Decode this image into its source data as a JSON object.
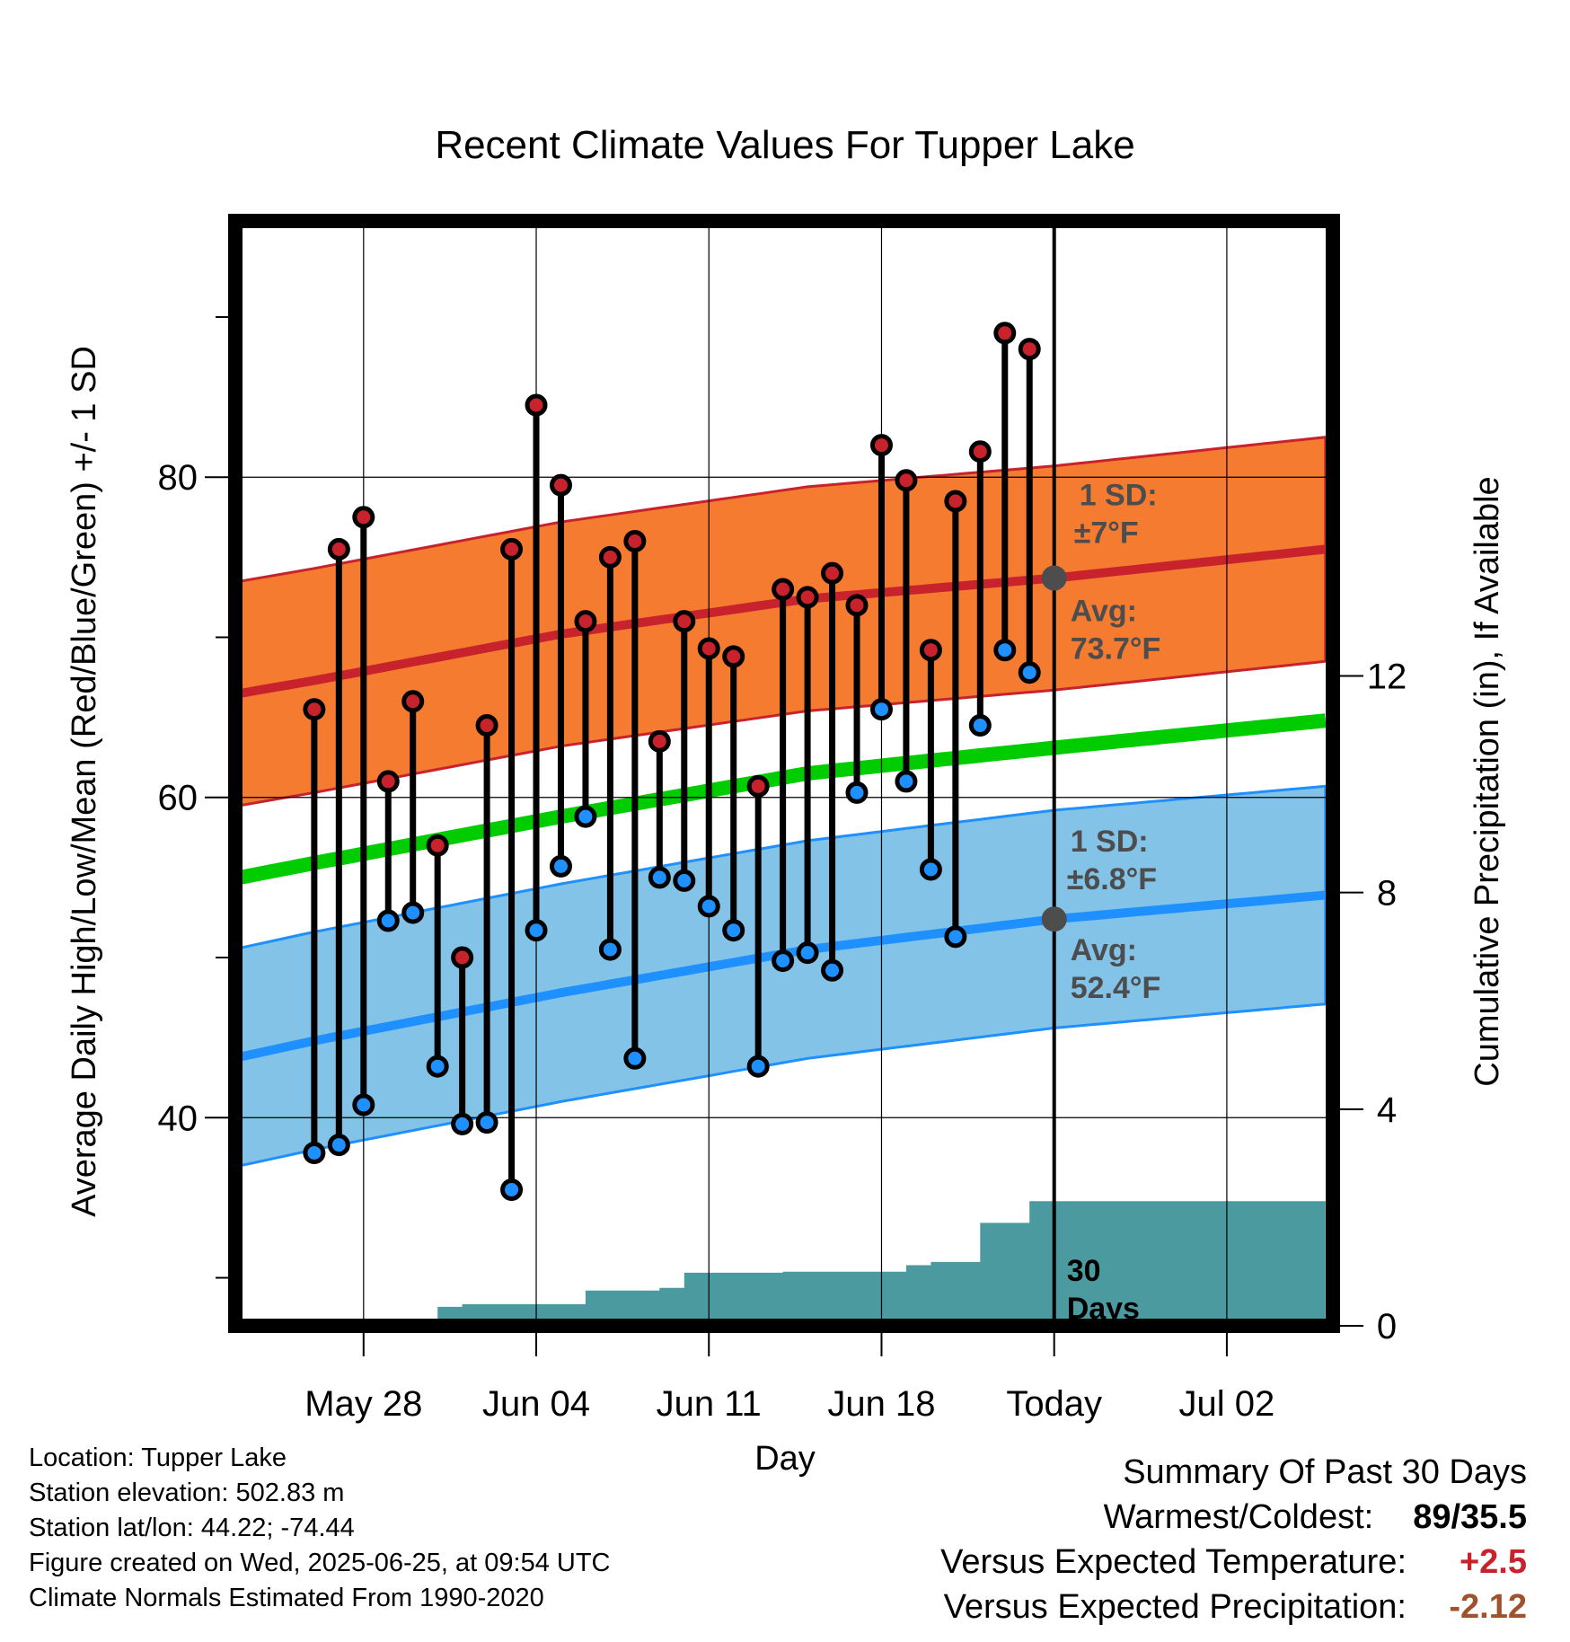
{
  "chart_data": {
    "type": "line",
    "title": "Recent Climate Values For Tupper Lake",
    "xlabel": "Day",
    "ylabel": "Average Daily High/Low/Mean (Red/Blue/Green) +/- 1 SD",
    "y2label": "Cumulative Precipitation (in), If Available",
    "ylim": [
      27,
      96
    ],
    "y2lim": [
      0,
      20.4
    ],
    "xlim": [
      -3.2,
      41.3
    ],
    "x_tick_labels": [
      {
        "day": 2,
        "label": "May 28"
      },
      {
        "day": 9,
        "label": "Jun 04"
      },
      {
        "day": 16,
        "label": "Jun 11"
      },
      {
        "day": 23,
        "label": "Jun 18"
      },
      {
        "day": 30,
        "label": "Today"
      },
      {
        "day": 37,
        "label": "Jul 02"
      }
    ],
    "y_ticks_major": [
      40,
      60,
      80
    ],
    "y_ticks_minor": [
      30,
      50,
      70,
      90
    ],
    "y2_ticks": [
      0,
      4,
      8,
      12
    ],
    "grid": true,
    "today_day": 30,
    "days": [
      0,
      1,
      2,
      3,
      4,
      5,
      6,
      7,
      8,
      9,
      10,
      11,
      12,
      13,
      14,
      15,
      16,
      17,
      18,
      19,
      20,
      21,
      22,
      23,
      24,
      25,
      26,
      27,
      28,
      29
    ],
    "series": [
      {
        "name": "High",
        "color": "#c8232c",
        "values": [
          65.5,
          75.5,
          77.5,
          61,
          66,
          57,
          50,
          64.5,
          75.5,
          84.5,
          79.5,
          71,
          75,
          76,
          63.5,
          71,
          69.3,
          68.8,
          60.7,
          73,
          72.5,
          74,
          72,
          82,
          79.8,
          69.2,
          78.5,
          81.6,
          89,
          88
        ]
      },
      {
        "name": "Low",
        "color": "#1e90ff",
        "values": [
          37.8,
          38.3,
          40.8,
          52.3,
          52.8,
          43.2,
          39.6,
          39.7,
          35.5,
          51.7,
          55.7,
          58.8,
          50.5,
          43.7,
          55,
          54.8,
          53.2,
          51.7,
          43.2,
          49.8,
          50.3,
          49.2,
          60.3,
          65.5,
          61,
          55.5,
          51.3,
          64.5,
          69.2,
          67.8
        ]
      },
      {
        "name": "Normal high",
        "color": "#c8232c",
        "x": [
          -3,
          0,
          10,
          20,
          30,
          41
        ],
        "values": [
          66.5,
          67.3,
          70.2,
          72.4,
          73.7,
          75.5
        ]
      },
      {
        "name": "Normal low",
        "color": "#1e90ff",
        "x": [
          -3,
          0,
          10,
          20,
          30,
          41
        ],
        "values": [
          43.8,
          44.8,
          47.8,
          50.5,
          52.4,
          53.9
        ]
      },
      {
        "name": "Normal mean",
        "color": "#00cc00",
        "x": [
          -3,
          0,
          10,
          20,
          30,
          41
        ],
        "values": [
          55,
          55.9,
          58.8,
          61.5,
          63.1,
          64.8
        ]
      }
    ],
    "sd_high": 7,
    "sd_low": 6.8,
    "band_colors": {
      "high": "#f47b30",
      "low": "#83c3e8"
    },
    "precip": {
      "name": "Cumulative precipitation",
      "color": "#4a9aa0",
      "days": [
        0,
        1,
        2,
        3,
        4,
        5,
        6,
        7,
        8,
        9,
        10,
        11,
        12,
        13,
        14,
        15,
        16,
        17,
        18,
        19,
        20,
        21,
        22,
        23,
        24,
        25,
        26,
        27,
        28,
        29,
        30,
        41
      ],
      "values": [
        0,
        0,
        0,
        0,
        0,
        0.35,
        0.4,
        0.4,
        0.4,
        0.4,
        0.4,
        0.65,
        0.65,
        0.65,
        0.7,
        0.98,
        0.98,
        0.98,
        0.98,
        1,
        1,
        1,
        1,
        1,
        1.12,
        1.18,
        1.18,
        1.9,
        1.9,
        2.3,
        2.3,
        2.3
      ]
    },
    "annotations": {
      "high_sd": "1 SD:",
      "high_sd_value": "±7°F",
      "high_avg": "Avg:",
      "high_avg_value": "73.7°F",
      "low_sd": "1 SD:",
      "low_sd_value": "±6.8°F",
      "low_avg": "Avg:",
      "low_avg_value": "52.4°F",
      "precip_days_num": "30",
      "precip_days_word": "Days"
    }
  },
  "footer": {
    "location": "Location: Tupper Lake",
    "elevation": "Station elevation: 502.83 m",
    "latlon": "Station lat/lon: 44.22; -74.44",
    "created": "Figure created on Wed, 2025-06-25, at 09:54 UTC",
    "normals": "Climate Normals Estimated From 1990-2020"
  },
  "summary": {
    "heading": "Summary Of Past 30 Days",
    "warmest_label": "Warmest/Coldest:",
    "warmest_value": "89/35.5",
    "temp_label": "Versus Expected Temperature:",
    "temp_value": "+2.5",
    "temp_color": "#c8232c",
    "precip_label": "Versus Expected Precipitation:",
    "precip_value": "-2.12",
    "precip_color": "#a0522d"
  }
}
